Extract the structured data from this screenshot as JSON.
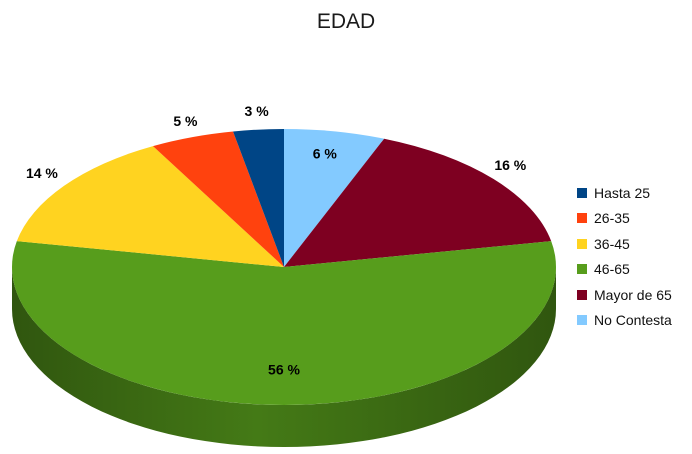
{
  "chart_data": {
    "type": "pie",
    "title": "EDAD",
    "legend_position": "right",
    "slices": [
      {
        "label": "Hasta 25",
        "value": 3,
        "value_label": "3 %",
        "color": "#004586"
      },
      {
        "label": "26-35",
        "value": 5,
        "value_label": "5 %",
        "color": "#ff420e"
      },
      {
        "label": "36-45",
        "value": 14,
        "value_label": "14 %",
        "color": "#ffd320"
      },
      {
        "label": "46-65",
        "value": 56,
        "value_label": "56 %",
        "color": "#579d1c"
      },
      {
        "label": "Mayor de 65",
        "value": 16,
        "value_label": "16 %",
        "color": "#7e0021"
      },
      {
        "label": "No Contesta",
        "value": 6,
        "value_label": "6 %",
        "color": "#83caff"
      }
    ]
  }
}
